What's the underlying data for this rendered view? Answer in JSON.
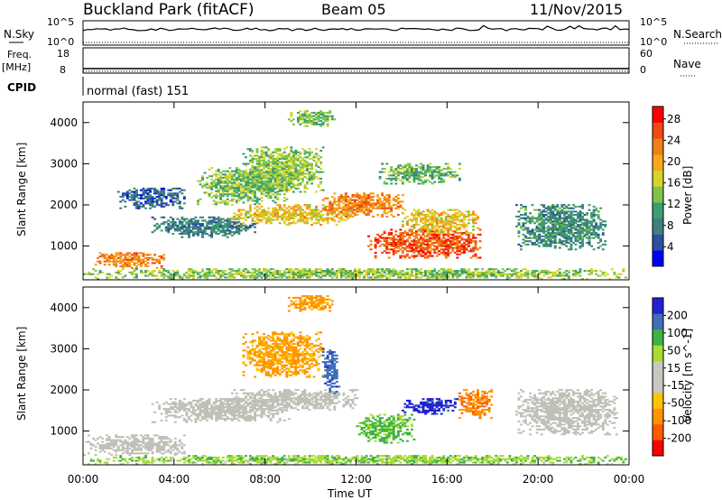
{
  "header": {
    "station": "Buckland Park (fitACF)",
    "beam": "Beam 05",
    "date": "11/Nov/2015"
  },
  "strips": {
    "nsky_label": "N.Sky",
    "nsearch_label": "N.Search",
    "nsky_ticks": [
      "10^5",
      "10^0"
    ],
    "nsearch_ticks": [
      "10^5",
      "10^0"
    ],
    "freq_label": "Freq.",
    "freq_unit": "[MHz]",
    "freq_ticks": [
      "18",
      "8"
    ],
    "nave_label": "Nave",
    "nave_ticks": [
      "60",
      "0"
    ],
    "cpid_label": "CPID",
    "cpid_value": "normal (fast) 151"
  },
  "colors": {
    "power_scale": [
      "#0000ff",
      "#2d4fa0",
      "#3f7f7f",
      "#3a9e6e",
      "#7cc44a",
      "#d6d42a",
      "#f5a81c",
      "#f07f16",
      "#ee4a12",
      "#ff0000"
    ],
    "velocity_scale": [
      "#ff0000",
      "#ff5a00",
      "#ff9400",
      "#ffc400",
      "#c8c8c0",
      "#c8c8c0",
      "#a8dc30",
      "#3cb444",
      "#3f70b8",
      "#2222d0"
    ],
    "ground_scatter": "#c0c0b8"
  },
  "chart_data": [
    {
      "type": "heatmap",
      "name": "power",
      "xlabel": "",
      "ylabel": "Slant Range [km]",
      "x_ticks": [
        "00:00",
        "04:00",
        "08:00",
        "12:00",
        "16:00",
        "20:00",
        "00:00"
      ],
      "x_range_hours": [
        0,
        24
      ],
      "y_ticks": [
        "1000",
        "2000",
        "3000",
        "4000"
      ],
      "y_range_km": [
        180,
        4500
      ],
      "colorbar_label": "Power [dB]",
      "colorbar_ticks": [
        "4",
        "8",
        "12",
        "16",
        "20",
        "24",
        "28"
      ],
      "colorbar_range": [
        0,
        30
      ],
      "grid": false,
      "features": [
        {
          "t": [
            0.5,
            3.6
          ],
          "r": [
            450,
            850
          ],
          "v": 22
        },
        {
          "t": [
            1.5,
            4.5
          ],
          "r": [
            1900,
            2400
          ],
          "v": 6
        },
        {
          "t": [
            3.0,
            7.5
          ],
          "r": [
            1200,
            1700
          ],
          "v": 8
        },
        {
          "t": [
            5.0,
            9.0
          ],
          "r": [
            2000,
            2900
          ],
          "v": 13
        },
        {
          "t": [
            6.5,
            12.0
          ],
          "r": [
            1500,
            2000
          ],
          "v": 18
        },
        {
          "t": [
            7.0,
            10.5
          ],
          "r": [
            2300,
            3400
          ],
          "v": 14
        },
        {
          "t": [
            9.0,
            11.0
          ],
          "r": [
            3900,
            4300
          ],
          "v": 13
        },
        {
          "t": [
            10.5,
            14.0
          ],
          "r": [
            1700,
            2300
          ],
          "v": 22
        },
        {
          "t": [
            12.5,
            17.5
          ],
          "r": [
            700,
            1400
          ],
          "v": 25
        },
        {
          "t": [
            14.0,
            17.5
          ],
          "r": [
            1300,
            1900
          ],
          "v": 18
        },
        {
          "t": [
            13.0,
            16.5
          ],
          "r": [
            2500,
            3000
          ],
          "v": 12
        },
        {
          "t": [
            19.0,
            23.0
          ],
          "r": [
            900,
            2000
          ],
          "v": 9
        },
        {
          "t": [
            0.0,
            24.0
          ],
          "r": [
            180,
            450
          ],
          "v": 14
        }
      ]
    },
    {
      "type": "heatmap",
      "name": "velocity",
      "xlabel": "Time UT",
      "ylabel": "Slant Range [km]",
      "x_ticks": [
        "00:00",
        "04:00",
        "08:00",
        "12:00",
        "16:00",
        "20:00",
        "00:00"
      ],
      "x_range_hours": [
        0,
        24
      ],
      "y_ticks": [
        "1000",
        "2000",
        "3000",
        "4000"
      ],
      "y_range_km": [
        180,
        4500
      ],
      "colorbar_label": "Velocity [m s^-1]",
      "colorbar_ticks": [
        "200",
        "100",
        "50",
        "15",
        "-15",
        "-50",
        "-100",
        "-200"
      ],
      "colorbar_range": [
        -250,
        250
      ],
      "grid": false,
      "features": [
        {
          "t": [
            0.0,
            4.5
          ],
          "r": [
            400,
            900
          ],
          "v": 0,
          "gs": true
        },
        {
          "t": [
            3.0,
            9.0
          ],
          "r": [
            1200,
            1800
          ],
          "v": 0,
          "gs": true
        },
        {
          "t": [
            6.5,
            12.0
          ],
          "r": [
            1500,
            2000
          ],
          "v": 0,
          "gs": true
        },
        {
          "t": [
            7.0,
            10.5
          ],
          "r": [
            2300,
            3400
          ],
          "v": -60
        },
        {
          "t": [
            9.0,
            11.0
          ],
          "r": [
            3900,
            4300
          ],
          "v": -70
        },
        {
          "t": [
            10.5,
            11.2
          ],
          "r": [
            1900,
            3000
          ],
          "v": 180
        },
        {
          "t": [
            12.0,
            14.5
          ],
          "r": [
            700,
            1400
          ],
          "v": 60
        },
        {
          "t": [
            14.0,
            16.5
          ],
          "r": [
            1400,
            1800
          ],
          "v": 220
        },
        {
          "t": [
            16.5,
            18.0
          ],
          "r": [
            1300,
            2000
          ],
          "v": -90
        },
        {
          "t": [
            19.0,
            23.5
          ],
          "r": [
            900,
            2000
          ],
          "v": 0,
          "gs": true
        },
        {
          "t": [
            0.0,
            24.0
          ],
          "r": [
            180,
            400
          ],
          "v": 40
        }
      ]
    }
  ]
}
